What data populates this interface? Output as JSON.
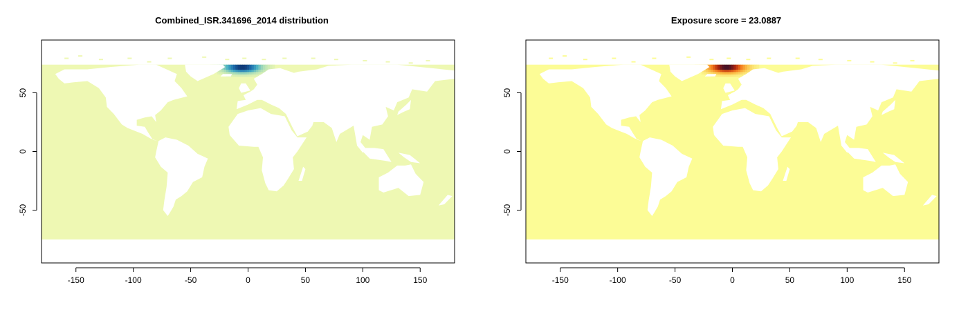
{
  "chart_data": [
    {
      "type": "heatmap",
      "title": "Combined_ISR.341696_2014 distribution",
      "xlim": [
        -180,
        180
      ],
      "ylim": [
        -95,
        95
      ],
      "xticks": [
        -150,
        -100,
        -50,
        0,
        50,
        100,
        150
      ],
      "yticks": [
        50,
        0,
        -50
      ],
      "grid": false,
      "ocean_extent_lat": [
        -75,
        74
      ],
      "base_color": "#eef8b3",
      "colorscale": [
        "#eef8b3",
        "#a8dcb8",
        "#45aec4",
        "#1f6fae",
        "#0b2c6b"
      ],
      "hotspot": {
        "lon": -5,
        "lat": 72,
        "sigma_lon": 11,
        "sigma_lat": 3.2
      }
    },
    {
      "type": "heatmap",
      "title": "Exposure score = 23.0887",
      "xlim": [
        -180,
        180
      ],
      "ylim": [
        -95,
        95
      ],
      "xticks": [
        -150,
        -100,
        -50,
        0,
        50,
        100,
        150
      ],
      "yticks": [
        50,
        0,
        -50
      ],
      "grid": false,
      "ocean_extent_lat": [
        -75,
        74
      ],
      "base_color": "#fcfc96",
      "colorscale": [
        "#fcfc96",
        "#fbc24a",
        "#f47a1e",
        "#b3270f",
        "#2d0c2c"
      ],
      "hotspot": {
        "lon": -5,
        "lat": 72,
        "sigma_lon": 11,
        "sigma_lat": 3.2
      }
    }
  ]
}
